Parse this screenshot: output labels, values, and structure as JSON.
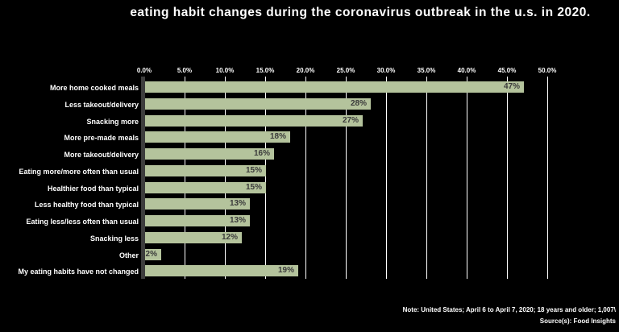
{
  "title": "eating habit changes during the coronavirus outbreak in the u.s. in 2020.",
  "colors": {
    "background": "#000000",
    "bar": "#b4c39c",
    "bar_value_label": "#3a3a3a",
    "gridline": "#ffffff",
    "axis_line": "#3d3d3d",
    "text": "#ffffff"
  },
  "chart_data": {
    "type": "bar",
    "orientation": "horizontal",
    "title": "eating habit changes during the coronavirus outbreak in the u.s. in 2020.",
    "categories": [
      "More home cooked meals",
      "Less takeout/delivery",
      "Snacking more",
      "More pre-made meals",
      "More takeout/delivery",
      "Eating more/more often than usual",
      "Healthier food than typical",
      "Less healthy food than typical",
      "Eating less/less often than usual",
      "Snacking less",
      "Other",
      "My eating habits have not changed"
    ],
    "values": [
      47,
      28,
      27,
      18,
      16,
      15,
      15,
      13,
      13,
      12,
      2,
      19
    ],
    "value_labels": [
      "47%",
      "28%",
      "27%",
      "18%",
      "16%",
      "15%",
      "15%",
      "13%",
      "13%",
      "12%",
      "2%",
      "19%"
    ],
    "x_ticks": [
      "0.0%",
      "5.0%",
      "10.0%",
      "15.0%",
      "20.0%",
      "25.0%",
      "30.0%",
      "35.0%",
      "40.0%",
      "45.0%",
      "50.0%"
    ],
    "x_tick_values": [
      0,
      5,
      10,
      15,
      20,
      25,
      30,
      35,
      40,
      45,
      50
    ],
    "xlim": [
      0,
      50
    ],
    "grid": true,
    "legend": false,
    "value_labels_position": "inside-end"
  },
  "footer": {
    "note": "Note:  United States; April 6 to April 7, 2020; 18 years and older; 1,007\\",
    "source": "Source(s): Food Insights"
  }
}
